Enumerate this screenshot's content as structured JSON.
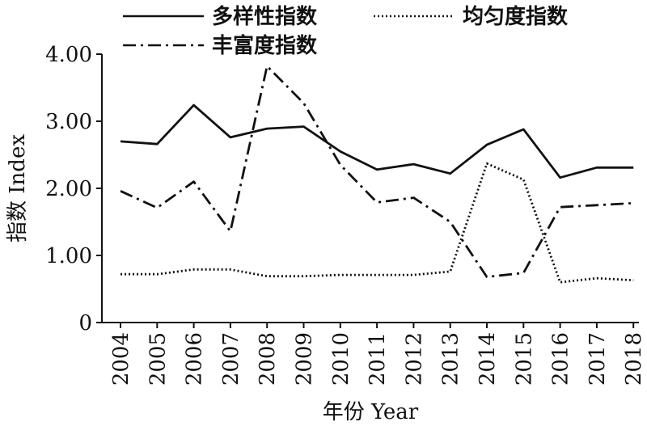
{
  "chart_data": {
    "type": "line",
    "xlabel": "年份 Year",
    "ylabel": "指数 Index",
    "ylim": [
      0,
      4
    ],
    "y_ticks": [
      "0",
      "1.00",
      "2.00",
      "3.00",
      "4.00"
    ],
    "categories": [
      "2004",
      "2005",
      "2006",
      "2007",
      "2008",
      "2009",
      "2010",
      "2011",
      "2012",
      "2013",
      "2014",
      "2015",
      "2016",
      "2017",
      "2018"
    ],
    "legend_position": "top",
    "series": [
      {
        "name": "多样性指数",
        "line_style": "solid",
        "color": "#111111",
        "values": [
          2.7,
          2.66,
          3.24,
          2.76,
          2.89,
          2.92,
          2.55,
          2.28,
          2.36,
          2.22,
          2.65,
          2.88,
          2.16,
          2.31,
          2.31
        ]
      },
      {
        "name": "均匀度指数",
        "line_style": "dotted",
        "color": "#111111",
        "values": [
          0.72,
          0.72,
          0.79,
          0.79,
          0.69,
          0.69,
          0.71,
          0.71,
          0.71,
          0.76,
          2.37,
          2.13,
          0.6,
          0.66,
          0.63
        ]
      },
      {
        "name": "丰富度指数",
        "line_style": "dashdot",
        "color": "#111111",
        "values": [
          1.96,
          1.71,
          2.1,
          1.36,
          3.82,
          3.27,
          2.35,
          1.79,
          1.86,
          1.5,
          0.68,
          0.74,
          1.72,
          1.75,
          1.78
        ]
      }
    ]
  }
}
